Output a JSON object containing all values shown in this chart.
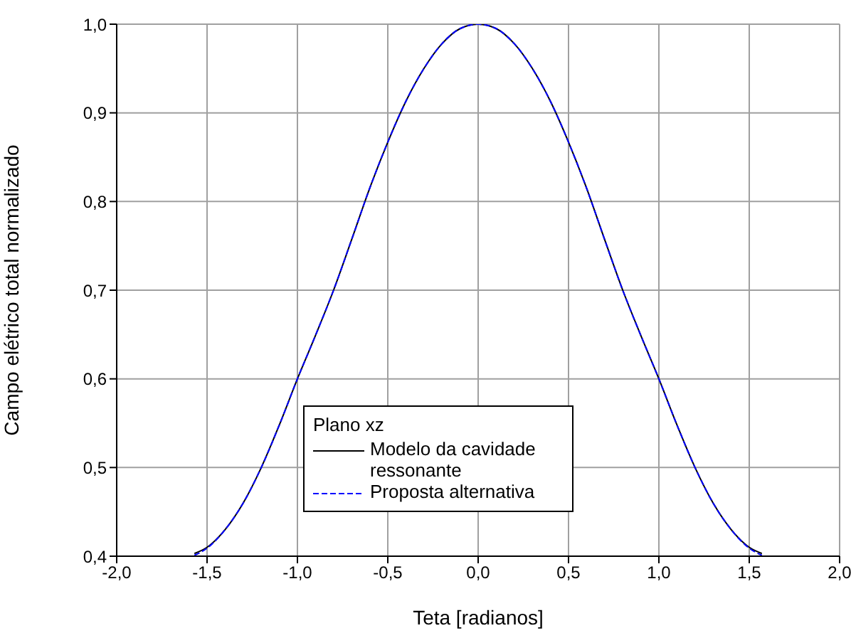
{
  "chart_data": {
    "type": "line",
    "xlabel": "Teta [radianos]",
    "ylabel": "Campo elétrico total normalizado",
    "legend_title": "Plano xz",
    "x": [
      -1.57,
      -1.5,
      -1.4,
      -1.3,
      -1.2,
      -1.1,
      -1.0,
      -0.9,
      -0.8,
      -0.7,
      -0.6,
      -0.5,
      -0.4,
      -0.3,
      -0.2,
      -0.1,
      0.0,
      0.1,
      0.2,
      0.3,
      0.4,
      0.5,
      0.6,
      0.7,
      0.8,
      0.9,
      1.0,
      1.1,
      1.2,
      1.3,
      1.4,
      1.5,
      1.57
    ],
    "series": [
      {
        "name": "Modelo da cavidade ressonante",
        "color": "#000000",
        "line_style": "solid",
        "values": [
          0.403,
          0.41,
          0.43,
          0.46,
          0.5,
          0.548,
          0.6,
          0.649,
          0.7,
          0.757,
          0.815,
          0.867,
          0.913,
          0.95,
          0.978,
          0.995,
          1.0,
          0.995,
          0.978,
          0.95,
          0.913,
          0.867,
          0.815,
          0.757,
          0.7,
          0.649,
          0.6,
          0.548,
          0.5,
          0.46,
          0.43,
          0.41,
          0.403
        ]
      },
      {
        "name": "Proposta alternativa",
        "color": "#0000ff",
        "line_style": "dashed",
        "values": [
          0.401,
          0.409,
          0.43,
          0.46,
          0.5,
          0.548,
          0.6,
          0.649,
          0.7,
          0.757,
          0.815,
          0.867,
          0.913,
          0.95,
          0.978,
          0.995,
          1.0,
          0.995,
          0.978,
          0.95,
          0.913,
          0.867,
          0.815,
          0.757,
          0.7,
          0.649,
          0.6,
          0.548,
          0.5,
          0.46,
          0.43,
          0.409,
          0.401
        ]
      }
    ],
    "xlim": [
      -2.0,
      2.0
    ],
    "xticks": [
      {
        "value": -2.0,
        "label": "-2,0"
      },
      {
        "value": -1.5,
        "label": "-1,5"
      },
      {
        "value": -1.0,
        "label": "-1,0"
      },
      {
        "value": -0.5,
        "label": "-0,5"
      },
      {
        "value": 0.0,
        "label": "0,0"
      },
      {
        "value": 0.5,
        "label": "0,5"
      },
      {
        "value": 1.0,
        "label": "1,0"
      },
      {
        "value": 1.5,
        "label": "1,5"
      },
      {
        "value": 2.0,
        "label": "2,0"
      }
    ],
    "ylim": [
      0.4,
      1.0
    ],
    "yticks": [
      {
        "value": 0.4,
        "label": "0,4"
      },
      {
        "value": 0.5,
        "label": "0,5"
      },
      {
        "value": 0.6,
        "label": "0,6"
      },
      {
        "value": 0.7,
        "label": "0,7"
      },
      {
        "value": 0.8,
        "label": "0,8"
      },
      {
        "value": 0.9,
        "label": "0,9"
      },
      {
        "value": 1.0,
        "label": "1,0"
      }
    ],
    "grid": true,
    "legend": "bottom",
    "marker": "none"
  }
}
